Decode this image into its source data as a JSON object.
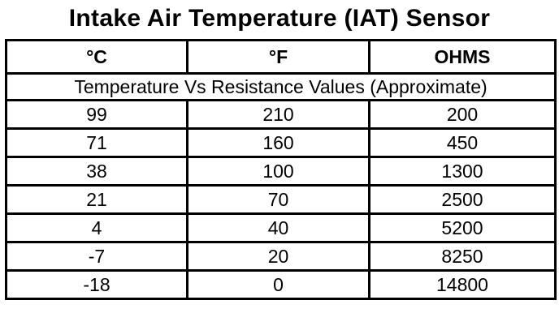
{
  "header": {
    "title": "Intake Air Temperature (IAT) Sensor"
  },
  "table": {
    "columns": [
      "°C",
      "°F",
      "OHMS"
    ],
    "caption": "Temperature Vs Resistance Values (Approximate)",
    "rows": [
      [
        "99",
        "210",
        "200"
      ],
      [
        "71",
        "160",
        "450"
      ],
      [
        "38",
        "100",
        "1300"
      ],
      [
        "21",
        "70",
        "2500"
      ],
      [
        "4",
        "40",
        "5200"
      ],
      [
        "-7",
        "20",
        "8250"
      ],
      [
        "-18",
        "0",
        "14800"
      ]
    ]
  }
}
